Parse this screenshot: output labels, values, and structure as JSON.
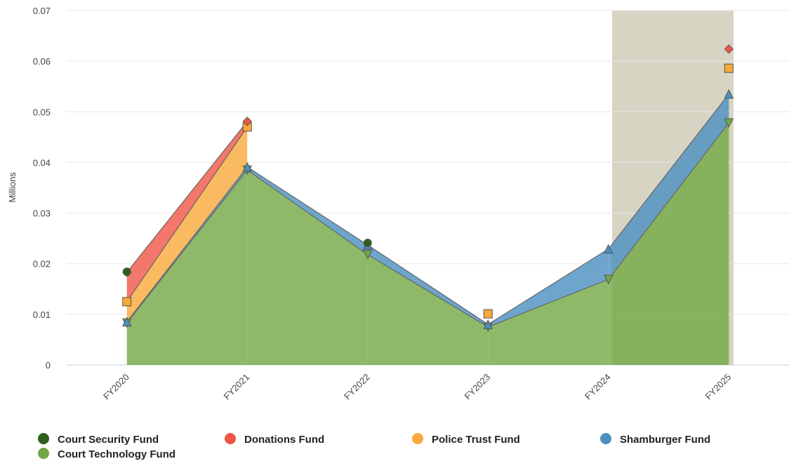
{
  "chart_data": {
    "type": "stacked-area",
    "y_label": "Millions",
    "categories": [
      "FY2020",
      "FY2021",
      "FY2022",
      "FY2023",
      "FY2024",
      "FY2025"
    ],
    "ylim": [
      0,
      0.07
    ],
    "yticks": [
      0,
      0.01,
      0.02,
      0.03,
      0.04,
      0.05,
      0.06,
      0.07
    ],
    "grid": true,
    "series": [
      {
        "name": "Court Security Fund",
        "color": "#2f5f1f",
        "marker": "circle",
        "values": [
          0.0001,
          null,
          0.0004,
          null,
          null,
          null
        ]
      },
      {
        "name": "Donations Fund",
        "color": "#f05545",
        "marker": "diamond",
        "values": [
          0.0058,
          0.0011,
          null,
          null,
          null,
          0.0038
        ]
      },
      {
        "name": "Police Trust Fund",
        "color": "#f8a93a",
        "marker": "square",
        "values": [
          0.004,
          0.0079,
          null,
          0.0021,
          null,
          0.0051
        ]
      },
      {
        "name": "Shamburger Fund",
        "color": "#4a8fc0",
        "marker": "triangle",
        "values": [
          0.0002,
          0.0006,
          0.0019,
          0.0005,
          0.006,
          0.0057
        ]
      },
      {
        "name": "Court Technology Fund",
        "color": "#72a843",
        "marker": "triangle-down",
        "values": [
          0.0083,
          0.0385,
          0.0218,
          0.0075,
          0.0169,
          0.0478
        ]
      }
    ]
  }
}
